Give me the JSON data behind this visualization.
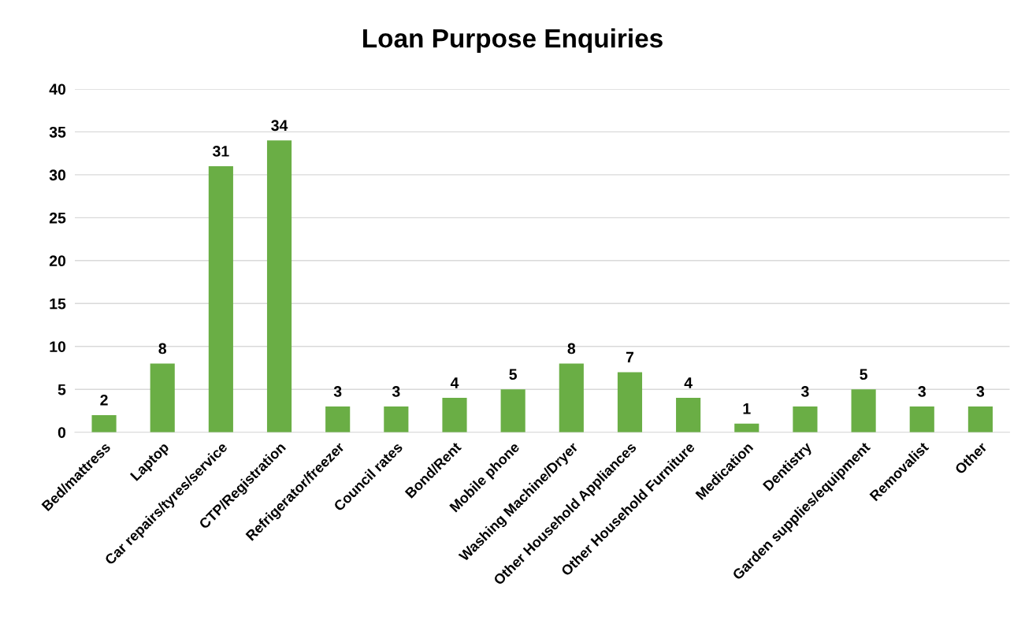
{
  "chart_data": {
    "type": "bar",
    "title": "Loan Purpose Enquiries",
    "categories": [
      "Bed/mattress",
      "Laptop",
      "Car repairs/tyres/service",
      "CTP/Registration",
      "Refrigerator/freezer",
      "Council rates",
      "Bond/Rent",
      "Mobile phone",
      "Washing Machine/Dryer",
      "Other Household Appliances",
      "Other Household Furniture",
      "Medication",
      "Dentistry",
      "Garden supplies/equipment",
      "Removalist",
      "Other"
    ],
    "values": [
      2,
      8,
      31,
      34,
      3,
      3,
      4,
      5,
      8,
      7,
      4,
      1,
      3,
      5,
      3,
      3
    ],
    "color": "#6aae45",
    "ylim": [
      0,
      40
    ],
    "yticks": [
      0,
      5,
      10,
      15,
      20,
      25,
      30,
      35,
      40
    ],
    "grid": "y",
    "data_labels": true
  }
}
